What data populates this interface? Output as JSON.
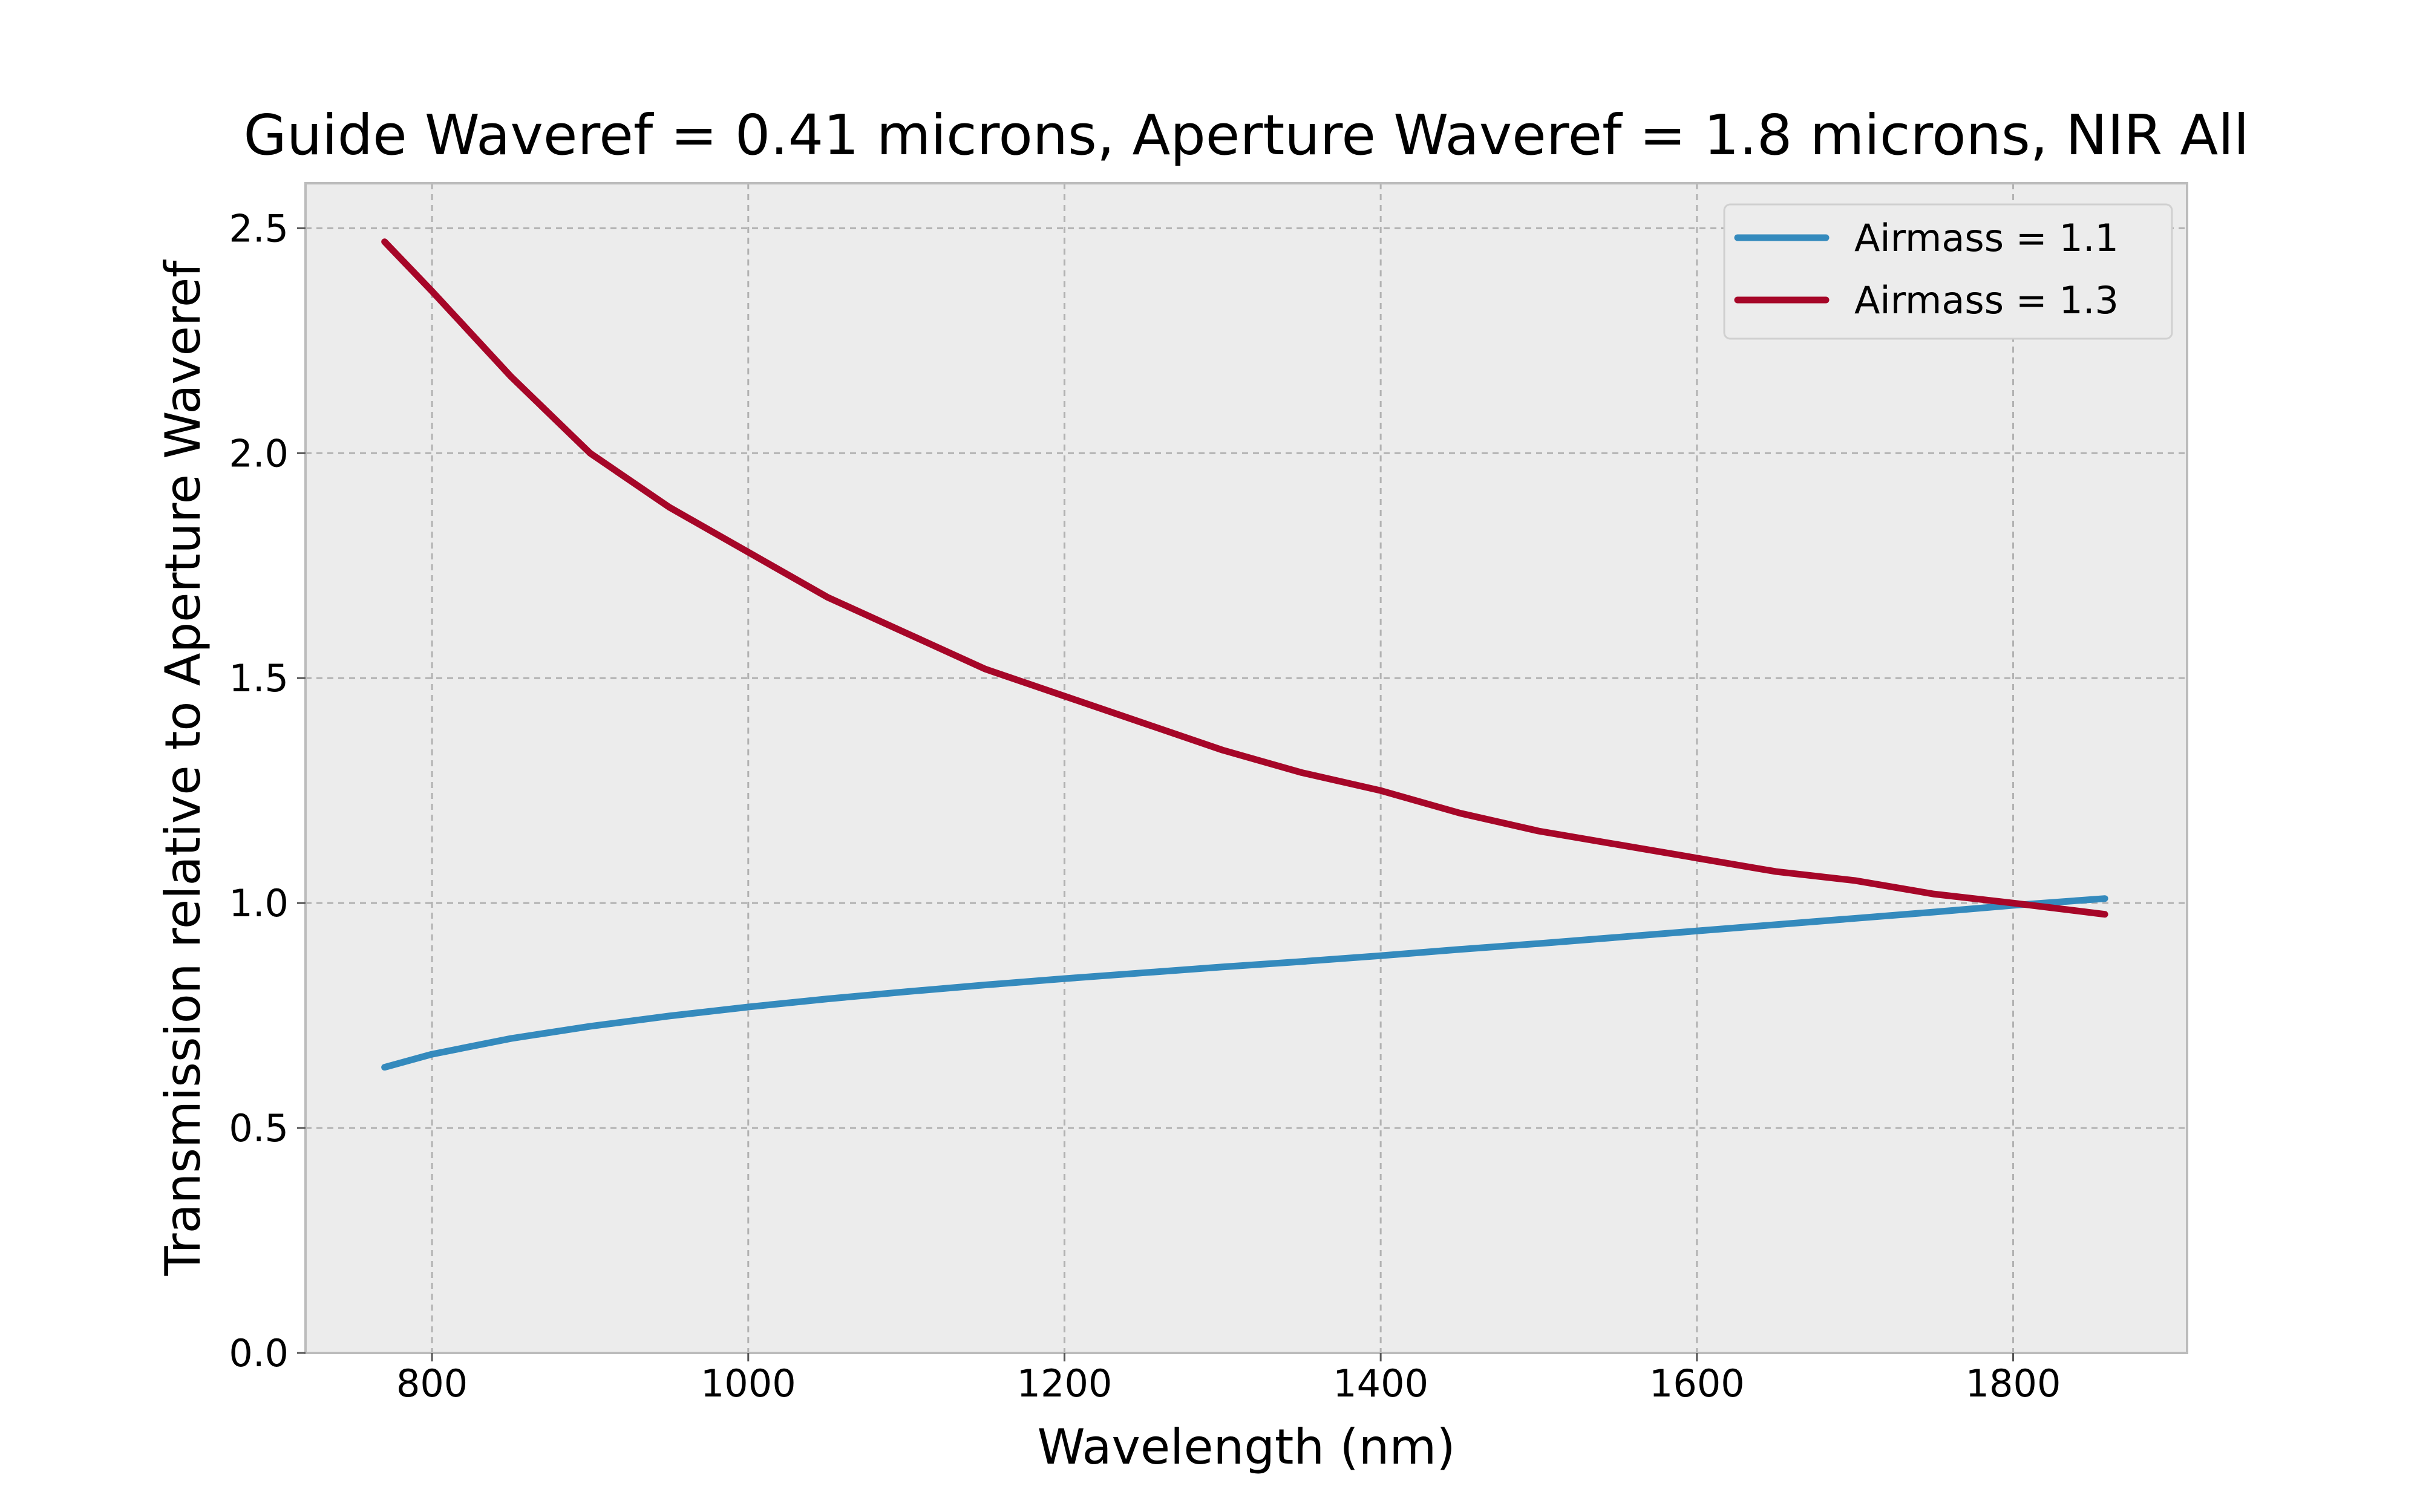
{
  "chart_data": {
    "type": "line",
    "title": "Guide Waveref = 0.41 microns, Aperture Waveref = 1.8 microns, NIR All",
    "xlabel": "Wavelength (nm)",
    "ylabel": "Transmission relative to Aperture Waveref",
    "xlim": [
      720,
      1910
    ],
    "ylim": [
      0.0,
      2.6
    ],
    "xticks": [
      800,
      1000,
      1200,
      1400,
      1600,
      1800
    ],
    "yticks": [
      0.0,
      0.5,
      1.0,
      1.5,
      2.0,
      2.5
    ],
    "xtick_labels": [
      "800",
      "1000",
      "1200",
      "1400",
      "1600",
      "1800"
    ],
    "ytick_labels": [
      "0.0",
      "0.5",
      "1.0",
      "1.5",
      "2.0",
      "2.5"
    ],
    "grid": true,
    "legend_position": "top-right",
    "background_color": "#ececec",
    "series": [
      {
        "name": "Airmass = 1.1",
        "color": "#348abd",
        "x": [
          770,
          800,
          850,
          900,
          950,
          1000,
          1050,
          1100,
          1150,
          1200,
          1250,
          1300,
          1350,
          1400,
          1450,
          1500,
          1550,
          1600,
          1650,
          1700,
          1750,
          1800,
          1858
        ],
        "y": [
          0.635,
          0.664,
          0.699,
          0.726,
          0.749,
          0.769,
          0.787,
          0.803,
          0.818,
          0.832,
          0.845,
          0.858,
          0.87,
          0.883,
          0.897,
          0.91,
          0.924,
          0.938,
          0.952,
          0.966,
          0.98,
          0.995,
          1.01
        ]
      },
      {
        "name": "Airmass = 1.3",
        "color": "#a60628",
        "x": [
          770,
          800,
          850,
          900,
          950,
          1000,
          1050,
          1100,
          1150,
          1200,
          1250,
          1300,
          1350,
          1400,
          1450,
          1500,
          1550,
          1600,
          1650,
          1700,
          1750,
          1800,
          1858
        ],
        "y": [
          2.47,
          2.36,
          2.17,
          2.0,
          1.88,
          1.78,
          1.68,
          1.6,
          1.52,
          1.46,
          1.4,
          1.34,
          1.29,
          1.25,
          1.2,
          1.16,
          1.13,
          1.1,
          1.07,
          1.05,
          1.02,
          1.0,
          0.975
        ]
      }
    ]
  }
}
